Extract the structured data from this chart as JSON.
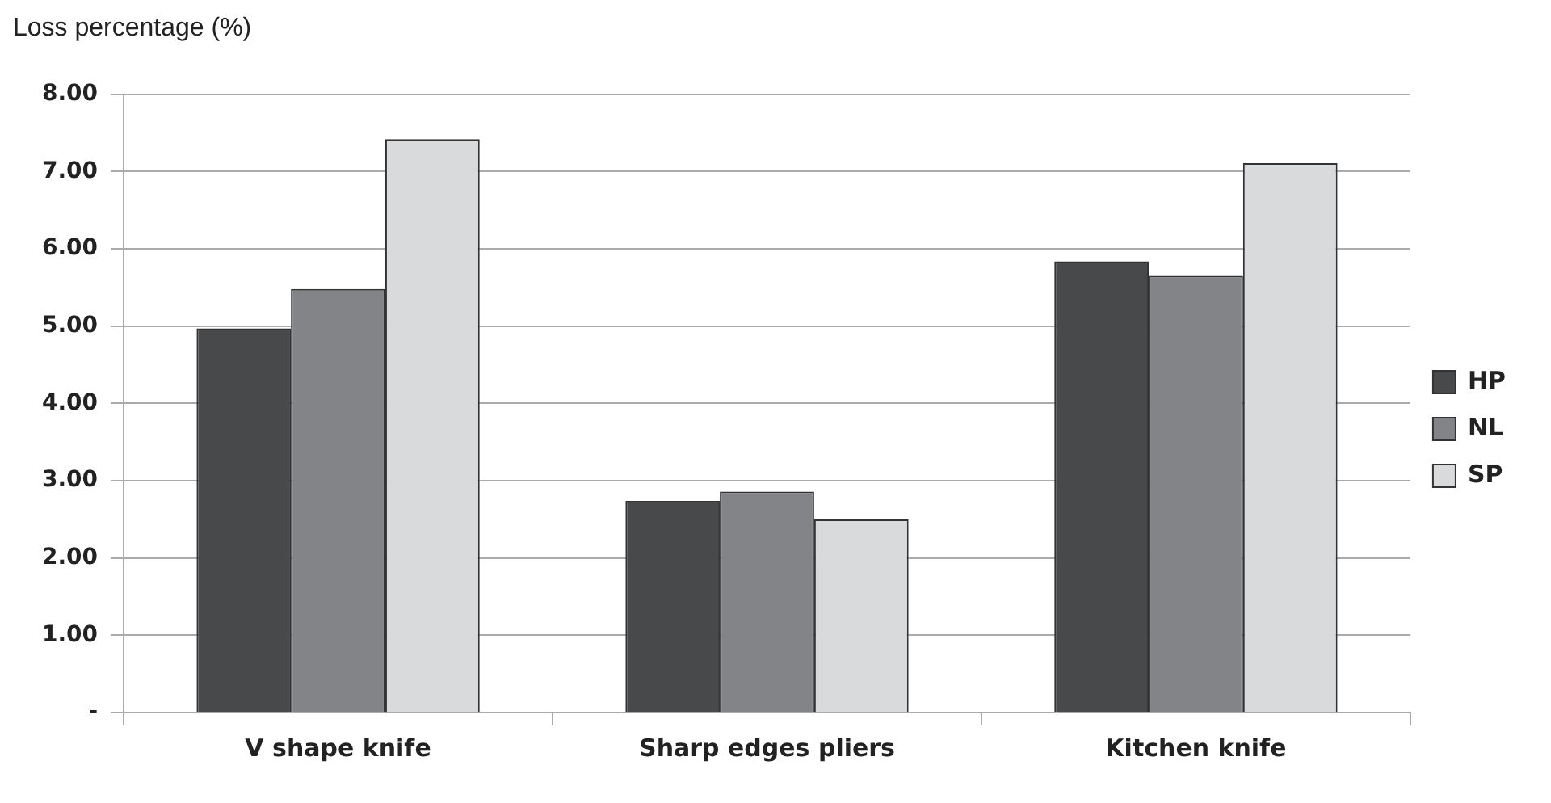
{
  "chart_data": {
    "type": "bar",
    "ylabel": "Loss percentage (%)",
    "categories": [
      "V shape knife",
      "Sharp edges pliers",
      "Kitchen knife"
    ],
    "series": [
      {
        "name": "HP",
        "color": "#48494b",
        "values": [
          4.97,
          2.74,
          5.84
        ]
      },
      {
        "name": "NL",
        "color": "#838488",
        "values": [
          5.48,
          2.86,
          5.65
        ]
      },
      {
        "name": "SP",
        "color": "#d9dadc",
        "values": [
          7.42,
          2.5,
          7.11
        ]
      }
    ],
    "ylim": [
      0,
      8
    ],
    "yticks": [
      {
        "value": 0,
        "label": "-"
      },
      {
        "value": 1,
        "label": "1.00"
      },
      {
        "value": 2,
        "label": "2.00"
      },
      {
        "value": 3,
        "label": "3.00"
      },
      {
        "value": 4,
        "label": "4.00"
      },
      {
        "value": 5,
        "label": "5.00"
      },
      {
        "value": 6,
        "label": "6.00"
      },
      {
        "value": 7,
        "label": "7.00"
      },
      {
        "value": 8,
        "label": "8.00"
      }
    ],
    "grid": "y",
    "legend": "right"
  }
}
